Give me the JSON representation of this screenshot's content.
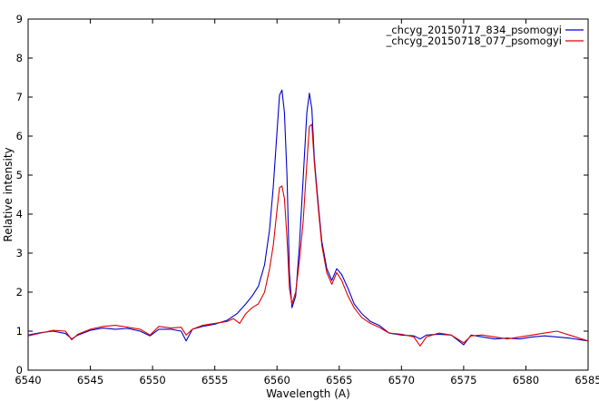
{
  "chart_data": {
    "type": "line",
    "title": "",
    "xlabel": "Wavelength (A)",
    "ylabel": "Relative intensity",
    "xlim": [
      6540,
      6585
    ],
    "ylim": [
      0,
      9
    ],
    "x_ticks": [
      6540,
      6545,
      6550,
      6555,
      6560,
      6565,
      6570,
      6575,
      6580,
      6585
    ],
    "y_ticks": [
      0,
      1,
      2,
      3,
      4,
      5,
      6,
      7,
      8,
      9
    ],
    "grid": false,
    "legend_position": "top-right",
    "series": [
      {
        "name": "_chcyg_20150717_834_psomogyi",
        "color": "#0000cc",
        "points": [
          [
            6540.0,
            0.9
          ],
          [
            6541.0,
            0.96
          ],
          [
            6542.0,
            1.0
          ],
          [
            6543.0,
            0.94
          ],
          [
            6543.5,
            0.8
          ],
          [
            6544.0,
            0.9
          ],
          [
            6545.0,
            1.02
          ],
          [
            6546.0,
            1.08
          ],
          [
            6547.0,
            1.05
          ],
          [
            6548.0,
            1.07
          ],
          [
            6549.0,
            1.0
          ],
          [
            6549.8,
            0.88
          ],
          [
            6550.5,
            1.05
          ],
          [
            6551.5,
            1.05
          ],
          [
            6552.3,
            1.0
          ],
          [
            6552.7,
            0.75
          ],
          [
            6553.2,
            1.05
          ],
          [
            6554.0,
            1.12
          ],
          [
            6555.0,
            1.18
          ],
          [
            6556.0,
            1.28
          ],
          [
            6556.8,
            1.45
          ],
          [
            6557.5,
            1.7
          ],
          [
            6558.0,
            1.9
          ],
          [
            6558.5,
            2.15
          ],
          [
            6559.0,
            2.7
          ],
          [
            6559.4,
            3.6
          ],
          [
            6559.7,
            4.7
          ],
          [
            6560.0,
            6.1
          ],
          [
            6560.2,
            7.05
          ],
          [
            6560.4,
            7.18
          ],
          [
            6560.6,
            6.6
          ],
          [
            6560.8,
            5.0
          ],
          [
            6561.0,
            2.5
          ],
          [
            6561.2,
            1.6
          ],
          [
            6561.5,
            1.9
          ],
          [
            6561.8,
            3.2
          ],
          [
            6562.1,
            4.9
          ],
          [
            6562.4,
            6.6
          ],
          [
            6562.6,
            7.1
          ],
          [
            6562.8,
            6.7
          ],
          [
            6563.0,
            5.4
          ],
          [
            6563.3,
            4.3
          ],
          [
            6563.6,
            3.3
          ],
          [
            6564.0,
            2.6
          ],
          [
            6564.4,
            2.3
          ],
          [
            6564.8,
            2.6
          ],
          [
            6565.2,
            2.45
          ],
          [
            6565.7,
            2.1
          ],
          [
            6566.2,
            1.7
          ],
          [
            6566.8,
            1.45
          ],
          [
            6567.5,
            1.25
          ],
          [
            6568.2,
            1.15
          ],
          [
            6569.0,
            0.95
          ],
          [
            6570.0,
            0.9
          ],
          [
            6571.0,
            0.88
          ],
          [
            6571.5,
            0.8
          ],
          [
            6572.0,
            0.9
          ],
          [
            6573.0,
            0.92
          ],
          [
            6574.0,
            0.9
          ],
          [
            6575.0,
            0.65
          ],
          [
            6575.6,
            0.9
          ],
          [
            6576.5,
            0.85
          ],
          [
            6577.5,
            0.8
          ],
          [
            6578.5,
            0.82
          ],
          [
            6579.5,
            0.8
          ],
          [
            6580.5,
            0.85
          ],
          [
            6581.5,
            0.88
          ],
          [
            6582.5,
            0.85
          ],
          [
            6583.5,
            0.82
          ],
          [
            6585.0,
            0.75
          ]
        ]
      },
      {
        "name": "_chcyg_20150718_077_psomogyi",
        "color": "#dd0000",
        "points": [
          [
            6540.0,
            0.88
          ],
          [
            6541.0,
            0.95
          ],
          [
            6542.0,
            1.02
          ],
          [
            6543.0,
            1.0
          ],
          [
            6543.5,
            0.78
          ],
          [
            6544.0,
            0.92
          ],
          [
            6545.0,
            1.05
          ],
          [
            6546.0,
            1.12
          ],
          [
            6547.0,
            1.15
          ],
          [
            6548.0,
            1.1
          ],
          [
            6549.0,
            1.05
          ],
          [
            6549.8,
            0.9
          ],
          [
            6550.5,
            1.12
          ],
          [
            6551.5,
            1.08
          ],
          [
            6552.3,
            1.1
          ],
          [
            6552.7,
            0.9
          ],
          [
            6553.2,
            1.05
          ],
          [
            6554.0,
            1.15
          ],
          [
            6555.0,
            1.2
          ],
          [
            6556.0,
            1.25
          ],
          [
            6556.5,
            1.32
          ],
          [
            6557.0,
            1.2
          ],
          [
            6557.5,
            1.45
          ],
          [
            6558.0,
            1.6
          ],
          [
            6558.5,
            1.7
          ],
          [
            6559.0,
            2.0
          ],
          [
            6559.4,
            2.6
          ],
          [
            6559.7,
            3.2
          ],
          [
            6560.0,
            4.1
          ],
          [
            6560.2,
            4.68
          ],
          [
            6560.4,
            4.72
          ],
          [
            6560.6,
            4.4
          ],
          [
            6560.8,
            3.4
          ],
          [
            6561.0,
            2.1
          ],
          [
            6561.2,
            1.7
          ],
          [
            6561.5,
            2.0
          ],
          [
            6561.8,
            2.8
          ],
          [
            6562.1,
            3.8
          ],
          [
            6562.4,
            5.3
          ],
          [
            6562.6,
            6.25
          ],
          [
            6562.8,
            6.3
          ],
          [
            6563.0,
            5.3
          ],
          [
            6563.3,
            4.2
          ],
          [
            6563.6,
            3.2
          ],
          [
            6564.0,
            2.5
          ],
          [
            6564.4,
            2.2
          ],
          [
            6564.8,
            2.5
          ],
          [
            6565.2,
            2.3
          ],
          [
            6565.7,
            1.9
          ],
          [
            6566.2,
            1.6
          ],
          [
            6566.8,
            1.35
          ],
          [
            6567.5,
            1.2
          ],
          [
            6568.2,
            1.1
          ],
          [
            6569.0,
            0.95
          ],
          [
            6570.0,
            0.92
          ],
          [
            6571.0,
            0.85
          ],
          [
            6571.5,
            0.62
          ],
          [
            6572.0,
            0.85
          ],
          [
            6573.0,
            0.95
          ],
          [
            6574.0,
            0.9
          ],
          [
            6575.0,
            0.7
          ],
          [
            6575.6,
            0.88
          ],
          [
            6576.5,
            0.9
          ],
          [
            6577.5,
            0.85
          ],
          [
            6578.5,
            0.8
          ],
          [
            6579.5,
            0.85
          ],
          [
            6580.5,
            0.9
          ],
          [
            6581.5,
            0.95
          ],
          [
            6582.5,
            1.0
          ],
          [
            6583.5,
            0.9
          ],
          [
            6585.0,
            0.75
          ]
        ]
      }
    ]
  }
}
